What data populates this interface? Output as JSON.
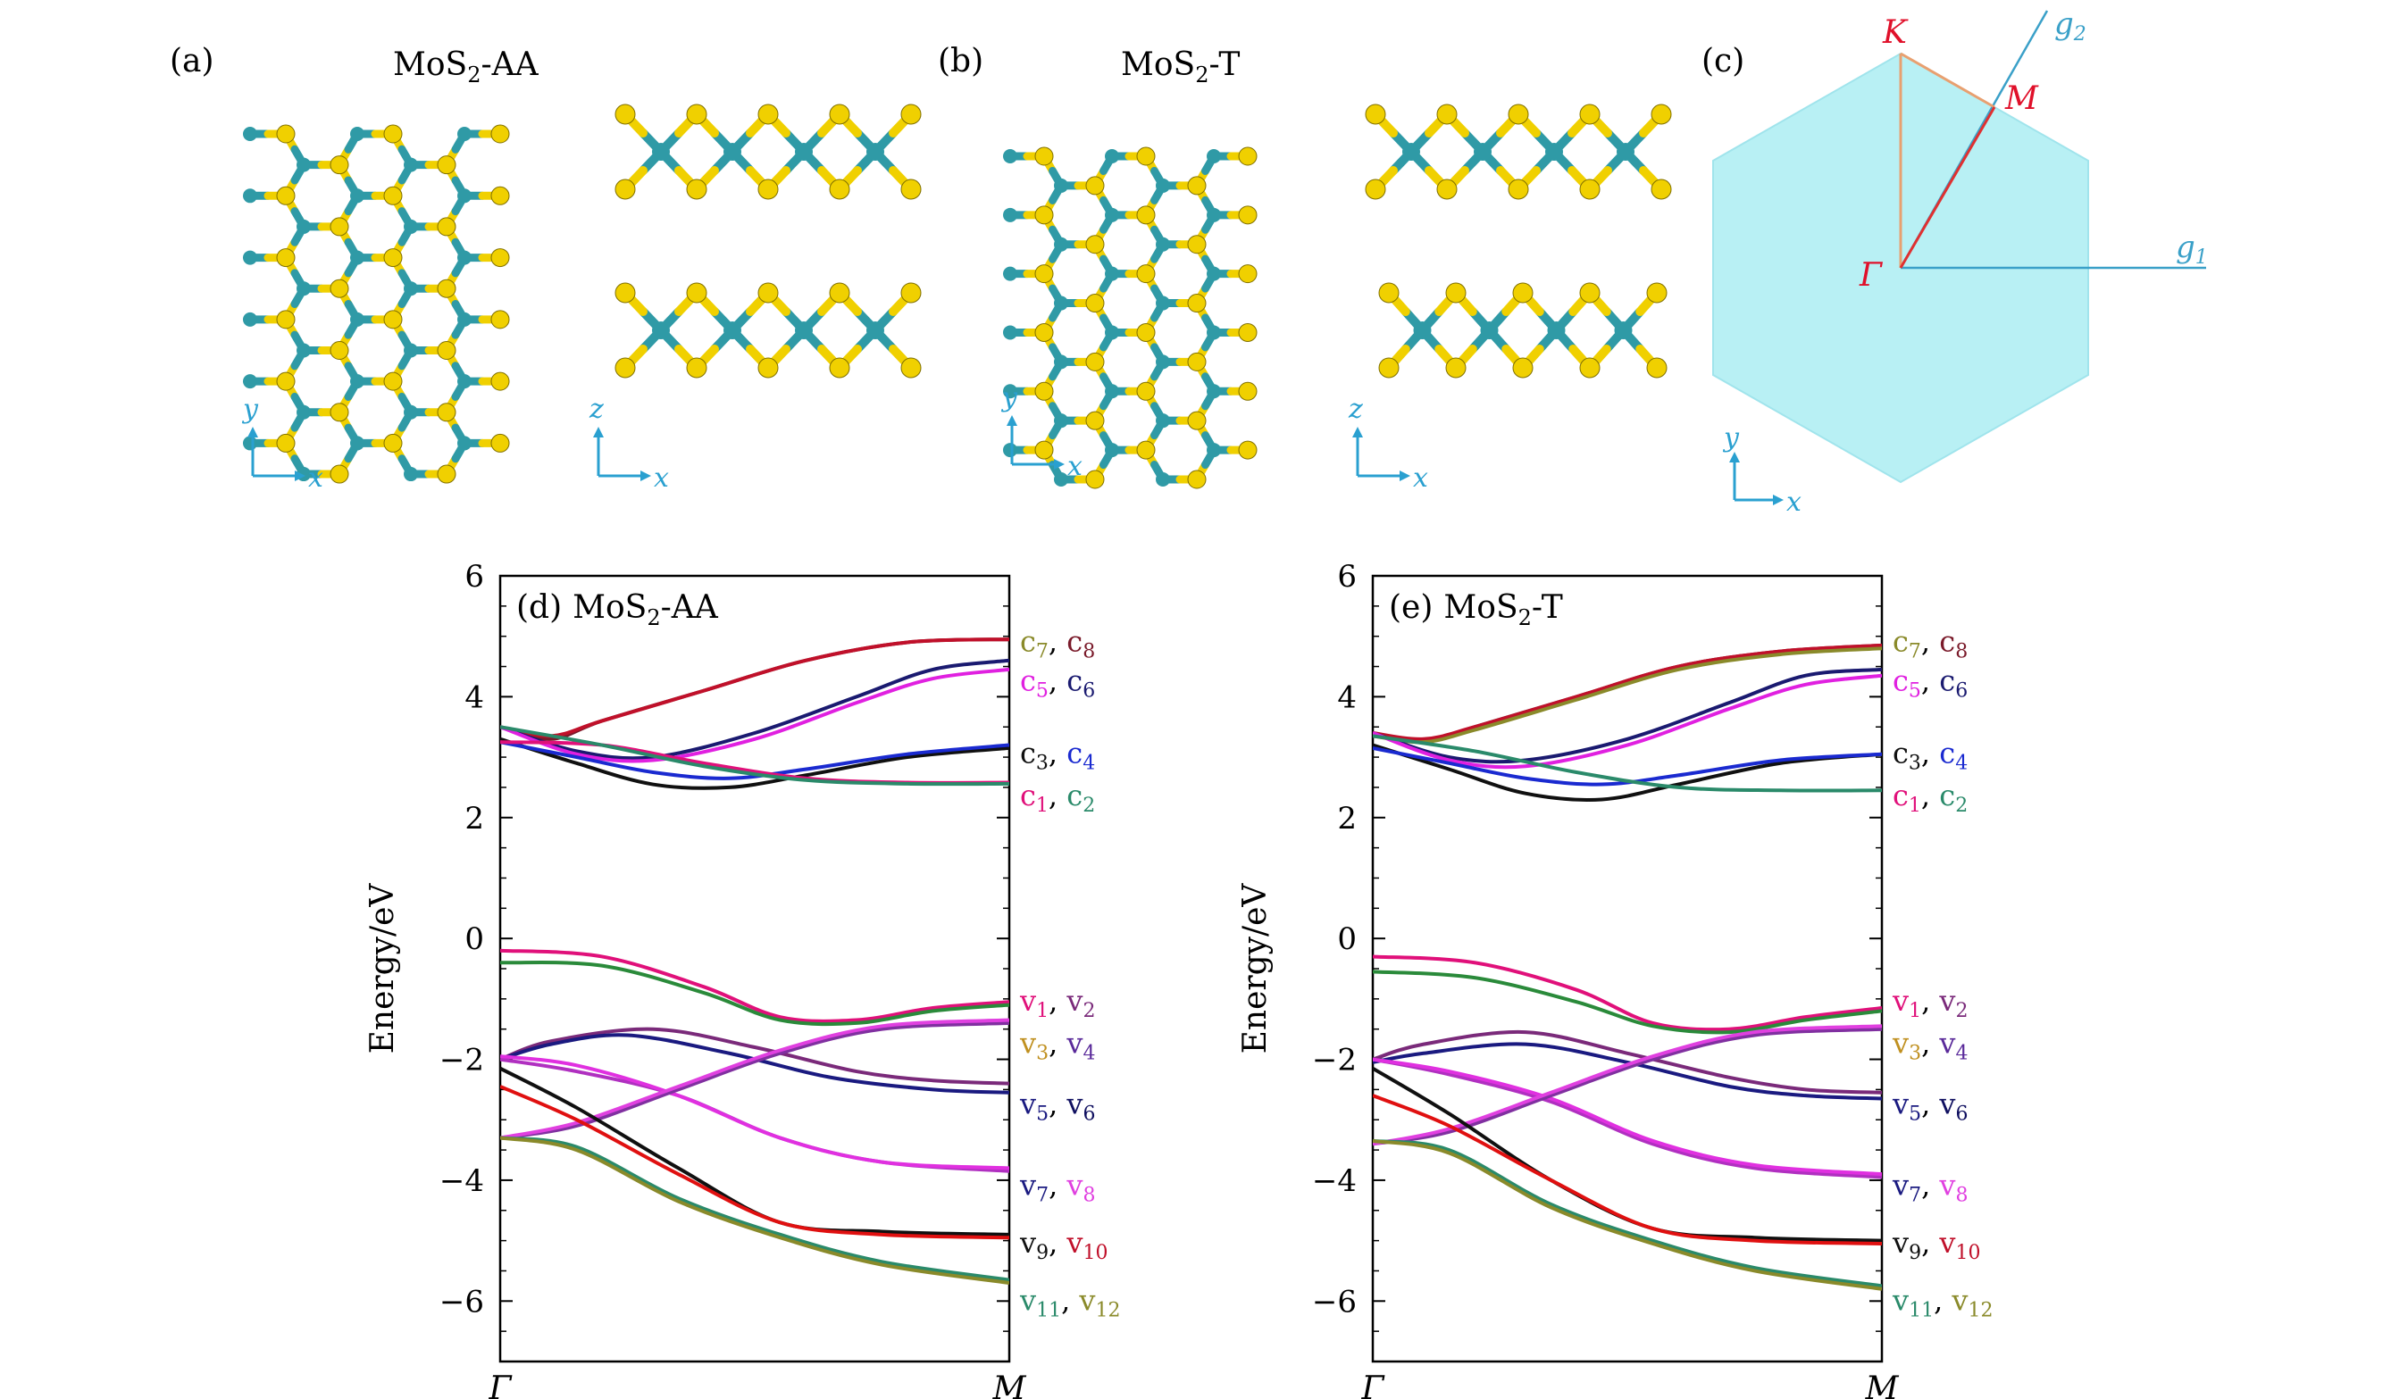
{
  "panels": {
    "a": {
      "letter": "(a)",
      "title_main": "MoS",
      "title_sub": "2",
      "title_rest": "-AA"
    },
    "b": {
      "letter": "(b)",
      "title_main": "MoS",
      "title_sub": "2",
      "title_rest": "-T"
    },
    "c": {
      "letter": "(c)"
    },
    "d": {
      "letter": "(d)",
      "title_main": "MoS",
      "title_sub": "2",
      "title_rest": "-AA"
    },
    "e": {
      "letter": "(e)",
      "title_main": "MoS",
      "title_sub": "2",
      "title_rest": "-T"
    }
  },
  "axes_labels": {
    "x": "x",
    "y": "y",
    "z": "z"
  },
  "brillouin": {
    "K": "K",
    "M": "M",
    "Gamma": "Γ",
    "g1_main": "g",
    "g1_sub": "1",
    "g2_main": "g",
    "g2_sub": "2"
  },
  "colors": {
    "atom_s": "#f0d000",
    "atom_mo": "#2f9aa6",
    "axis_blue": "#2aa0d0",
    "bz_fill": "#b8f0f4",
    "point_red": "#e0102a",
    "kpath_orange": "#e8a070"
  },
  "chart_data": [
    {
      "type": "line",
      "panel": "d",
      "ylabel": "Energy/eV",
      "ylim": [
        -7,
        6
      ],
      "yticks": [
        -6,
        -4,
        -2,
        0,
        2,
        4,
        6
      ],
      "xticks": [
        "Γ",
        "M"
      ],
      "xlim": [
        0,
        1
      ],
      "series": [
        {
          "color": "#7a1a2a",
          "x": [
            0,
            0.1,
            0.2,
            0.4,
            0.6,
            0.8,
            1
          ],
          "y": [
            3.5,
            3.3,
            3.6,
            4.1,
            4.6,
            4.9,
            4.95
          ]
        },
        {
          "color": "#c0102a",
          "x": [
            0,
            0.1,
            0.2,
            0.4,
            0.6,
            0.8,
            1
          ],
          "y": [
            3.5,
            3.35,
            3.6,
            4.1,
            4.6,
            4.9,
            4.95
          ]
        },
        {
          "color": "#1a1a70",
          "x": [
            0,
            0.15,
            0.3,
            0.5,
            0.7,
            0.85,
            1
          ],
          "y": [
            3.5,
            3.1,
            3.0,
            3.4,
            4.0,
            4.45,
            4.6
          ]
        },
        {
          "color": "#e020e0",
          "x": [
            0,
            0.15,
            0.3,
            0.5,
            0.7,
            0.85,
            1
          ],
          "y": [
            3.5,
            3.05,
            2.95,
            3.3,
            3.9,
            4.3,
            4.45
          ]
        },
        {
          "color": "#101010",
          "x": [
            0,
            0.15,
            0.3,
            0.45,
            0.6,
            0.8,
            1
          ],
          "y": [
            3.3,
            2.9,
            2.55,
            2.5,
            2.7,
            3.0,
            3.15
          ]
        },
        {
          "color": "#1a2ad0",
          "x": [
            0,
            0.15,
            0.3,
            0.45,
            0.6,
            0.8,
            1
          ],
          "y": [
            3.25,
            3.0,
            2.75,
            2.65,
            2.8,
            3.05,
            3.2
          ]
        },
        {
          "color": "#e0107a",
          "x": [
            0,
            0.2,
            0.4,
            0.6,
            0.8,
            1
          ],
          "y": [
            3.25,
            3.2,
            2.9,
            2.65,
            2.58,
            2.58
          ]
        },
        {
          "color": "#2a8a6a",
          "x": [
            0,
            0.2,
            0.4,
            0.6,
            0.8,
            1
          ],
          "y": [
            3.5,
            3.2,
            2.85,
            2.62,
            2.56,
            2.56
          ]
        },
        {
          "color": "#e0107a",
          "x": [
            0,
            0.2,
            0.4,
            0.55,
            0.7,
            0.85,
            1
          ],
          "y": [
            -0.2,
            -0.3,
            -0.8,
            -1.3,
            -1.35,
            -1.15,
            -1.05
          ]
        },
        {
          "color": "#2a8a3a",
          "x": [
            0,
            0.2,
            0.4,
            0.55,
            0.7,
            0.85,
            1
          ],
          "y": [
            -0.4,
            -0.45,
            -0.9,
            -1.35,
            -1.4,
            -1.2,
            -1.1
          ]
        },
        {
          "color": "#7a2a7a",
          "x": [
            0,
            0.1,
            0.3,
            0.5,
            0.7,
            0.85,
            1
          ],
          "y": [
            -2.0,
            -1.7,
            -1.5,
            -1.8,
            -2.2,
            -2.35,
            -2.4
          ]
        },
        {
          "color": "#1a1a80",
          "x": [
            0,
            0.1,
            0.25,
            0.45,
            0.65,
            0.85,
            1
          ],
          "y": [
            -2.0,
            -1.75,
            -1.6,
            -1.9,
            -2.3,
            -2.5,
            -2.55
          ]
        },
        {
          "color": "#b030c0",
          "x": [
            0,
            0.15,
            0.35,
            0.55,
            0.75,
            1
          ],
          "y": [
            -2.0,
            -2.2,
            -2.6,
            -3.3,
            -3.7,
            -3.85
          ]
        },
        {
          "color": "#e030e0",
          "x": [
            0,
            0.15,
            0.35,
            0.55,
            0.75,
            1
          ],
          "y": [
            -1.95,
            -2.1,
            -2.6,
            -3.3,
            -3.7,
            -3.8
          ]
        },
        {
          "color": "#8030a0",
          "x": [
            0,
            0.15,
            0.35,
            0.55,
            0.75,
            1
          ],
          "y": [
            -3.3,
            -3.1,
            -2.5,
            -1.9,
            -1.5,
            -1.4
          ]
        },
        {
          "color": "#e040e0",
          "x": [
            0,
            0.15,
            0.35,
            0.55,
            0.75,
            1
          ],
          "y": [
            -3.3,
            -3.05,
            -2.45,
            -1.85,
            -1.45,
            -1.35
          ]
        },
        {
          "color": "#101010",
          "x": [
            0,
            0.15,
            0.35,
            0.55,
            0.75,
            1
          ],
          "y": [
            -2.15,
            -2.8,
            -3.8,
            -4.7,
            -4.85,
            -4.9
          ]
        },
        {
          "color": "#e01010",
          "x": [
            0,
            0.15,
            0.35,
            0.55,
            0.75,
            1
          ],
          "y": [
            -2.45,
            -3.0,
            -3.9,
            -4.7,
            -4.9,
            -4.95
          ]
        },
        {
          "color": "#2a8a6a",
          "x": [
            0,
            0.15,
            0.35,
            0.55,
            0.75,
            1
          ],
          "y": [
            -3.3,
            -3.45,
            -4.3,
            -4.9,
            -5.35,
            -5.65
          ]
        },
        {
          "color": "#8a8a2a",
          "x": [
            0,
            0.15,
            0.35,
            0.55,
            0.75,
            1
          ],
          "y": [
            -3.3,
            -3.5,
            -4.35,
            -4.95,
            -5.4,
            -5.7
          ]
        }
      ],
      "band_labels": [
        {
          "y": 4.9,
          "a": "c",
          "a_sub": "7",
          "a_color": "#8a8a2a",
          "b": "c",
          "b_sub": "8",
          "b_color": "#7a1a2a"
        },
        {
          "y": 4.25,
          "a": "c",
          "a_sub": "5",
          "a_color": "#e020e0",
          "b": "c",
          "b_sub": "6",
          "b_color": "#1a1a70"
        },
        {
          "y": 3.05,
          "a": "c",
          "a_sub": "3",
          "a_color": "#101010",
          "b": "c",
          "b_sub": "4",
          "b_color": "#1a2ad0"
        },
        {
          "y": 2.35,
          "a": "c",
          "a_sub": "1",
          "a_color": "#e0107a",
          "b": "c",
          "b_sub": "2",
          "b_color": "#2a8a6a"
        },
        {
          "y": -1.05,
          "a": "v",
          "a_sub": "1",
          "a_color": "#e0107a",
          "b": "v",
          "b_sub": "2",
          "b_color": "#7a2a7a"
        },
        {
          "y": -1.75,
          "a": "v",
          "a_sub": "3",
          "a_color": "#c09020",
          "b": "v",
          "b_sub": "4",
          "b_color": "#5a2a9a"
        },
        {
          "y": -2.75,
          "a": "v",
          "a_sub": "5",
          "a_color": "#1a1a80",
          "b": "v",
          "b_sub": "6",
          "b_color": "#101060"
        },
        {
          "y": -4.1,
          "a": "v",
          "a_sub": "7",
          "a_color": "#1a1a80",
          "b": "v",
          "b_sub": "8",
          "b_color": "#e040e0"
        },
        {
          "y": -5.05,
          "a": "v",
          "a_sub": "9",
          "a_color": "#101010",
          "b": "v",
          "b_sub": "10",
          "b_color": "#c0102a"
        },
        {
          "y": -6.0,
          "a": "v",
          "a_sub": "11",
          "a_color": "#2a8a6a",
          "b": "v",
          "b_sub": "12",
          "b_color": "#8a8a2a"
        }
      ]
    },
    {
      "type": "line",
      "panel": "e",
      "ylabel": "Energy/eV",
      "ylim": [
        -7,
        6
      ],
      "yticks": [
        -6,
        -4,
        -2,
        0,
        2,
        4,
        6
      ],
      "xticks": [
        "Γ",
        "M"
      ],
      "xlim": [
        0,
        1
      ],
      "series": [
        {
          "color": "#7a1a2a",
          "x": [
            0,
            0.1,
            0.2,
            0.4,
            0.6,
            0.8,
            1
          ],
          "y": [
            3.4,
            3.25,
            3.5,
            4.0,
            4.5,
            4.75,
            4.85
          ]
        },
        {
          "color": "#c0102a",
          "x": [
            0,
            0.1,
            0.2,
            0.4,
            0.6,
            0.8,
            1
          ],
          "y": [
            3.4,
            3.3,
            3.5,
            4.0,
            4.5,
            4.75,
            4.85
          ]
        },
        {
          "color": "#8a8a2a",
          "x": [
            0,
            0.1,
            0.2,
            0.4,
            0.6,
            0.8,
            1
          ],
          "y": [
            3.35,
            3.25,
            3.45,
            3.95,
            4.45,
            4.7,
            4.8
          ]
        },
        {
          "color": "#1a1a70",
          "x": [
            0,
            0.15,
            0.3,
            0.5,
            0.7,
            0.85,
            1
          ],
          "y": [
            3.4,
            3.0,
            2.95,
            3.3,
            3.9,
            4.35,
            4.45
          ]
        },
        {
          "color": "#e020e0",
          "x": [
            0,
            0.15,
            0.3,
            0.5,
            0.7,
            0.85,
            1
          ],
          "y": [
            3.4,
            2.95,
            2.85,
            3.2,
            3.8,
            4.2,
            4.35
          ]
        },
        {
          "color": "#101010",
          "x": [
            0,
            0.15,
            0.3,
            0.45,
            0.6,
            0.8,
            1
          ],
          "y": [
            3.2,
            2.8,
            2.4,
            2.3,
            2.55,
            2.9,
            3.05
          ]
        },
        {
          "color": "#1a2ad0",
          "x": [
            0,
            0.15,
            0.3,
            0.45,
            0.6,
            0.8,
            1
          ],
          "y": [
            3.15,
            2.9,
            2.65,
            2.55,
            2.7,
            2.95,
            3.05
          ]
        },
        {
          "color": "#2a8a6a",
          "x": [
            0,
            0.2,
            0.4,
            0.6,
            0.8,
            1
          ],
          "y": [
            3.35,
            3.1,
            2.75,
            2.5,
            2.45,
            2.45
          ]
        },
        {
          "color": "#e0107a",
          "x": [
            0,
            0.2,
            0.4,
            0.55,
            0.7,
            0.85,
            1
          ],
          "y": [
            -0.3,
            -0.4,
            -0.85,
            -1.4,
            -1.5,
            -1.3,
            -1.15
          ]
        },
        {
          "color": "#2a8a3a",
          "x": [
            0,
            0.2,
            0.4,
            0.55,
            0.7,
            0.85,
            1
          ],
          "y": [
            -0.55,
            -0.65,
            -1.05,
            -1.45,
            -1.55,
            -1.35,
            -1.2
          ]
        },
        {
          "color": "#7a2a7a",
          "x": [
            0,
            0.1,
            0.3,
            0.5,
            0.7,
            0.85,
            1
          ],
          "y": [
            -2.0,
            -1.75,
            -1.55,
            -1.9,
            -2.3,
            -2.5,
            -2.55
          ]
        },
        {
          "color": "#1a1a80",
          "x": [
            0,
            0.1,
            0.3,
            0.5,
            0.7,
            0.85,
            1
          ],
          "y": [
            -2.05,
            -1.9,
            -1.75,
            -2.05,
            -2.45,
            -2.6,
            -2.65
          ]
        },
        {
          "color": "#b030c0",
          "x": [
            0,
            0.15,
            0.35,
            0.55,
            0.75,
            1
          ],
          "y": [
            -2.0,
            -2.25,
            -2.7,
            -3.4,
            -3.8,
            -3.95
          ]
        },
        {
          "color": "#e030e0",
          "x": [
            0,
            0.15,
            0.35,
            0.55,
            0.75,
            1
          ],
          "y": [
            -2.0,
            -2.2,
            -2.65,
            -3.35,
            -3.75,
            -3.9
          ]
        },
        {
          "color": "#8030a0",
          "x": [
            0,
            0.15,
            0.35,
            0.55,
            0.75,
            1
          ],
          "y": [
            -3.4,
            -3.2,
            -2.6,
            -2.0,
            -1.6,
            -1.5
          ]
        },
        {
          "color": "#e040e0",
          "x": [
            0,
            0.15,
            0.35,
            0.55,
            0.75,
            1
          ],
          "y": [
            -3.4,
            -3.15,
            -2.55,
            -1.95,
            -1.55,
            -1.45
          ]
        },
        {
          "color": "#101010",
          "x": [
            0,
            0.15,
            0.35,
            0.55,
            0.75,
            1
          ],
          "y": [
            -2.15,
            -2.9,
            -4.0,
            -4.8,
            -4.95,
            -5.0
          ]
        },
        {
          "color": "#e01010",
          "x": [
            0,
            0.15,
            0.35,
            0.55,
            0.75,
            1
          ],
          "y": [
            -2.6,
            -3.1,
            -4.0,
            -4.8,
            -5.0,
            -5.05
          ]
        },
        {
          "color": "#2a8a6a",
          "x": [
            0,
            0.15,
            0.35,
            0.55,
            0.75,
            1
          ],
          "y": [
            -3.35,
            -3.5,
            -4.4,
            -5.0,
            -5.45,
            -5.75
          ]
        },
        {
          "color": "#8a8a2a",
          "x": [
            0,
            0.15,
            0.35,
            0.55,
            0.75,
            1
          ],
          "y": [
            -3.35,
            -3.55,
            -4.45,
            -5.05,
            -5.5,
            -5.8
          ]
        }
      ],
      "band_labels": [
        {
          "y": 4.9,
          "a": "c",
          "a_sub": "7",
          "a_color": "#8a8a2a",
          "b": "c",
          "b_sub": "8",
          "b_color": "#7a1a2a"
        },
        {
          "y": 4.25,
          "a": "c",
          "a_sub": "5",
          "a_color": "#e020e0",
          "b": "c",
          "b_sub": "6",
          "b_color": "#1a1a70"
        },
        {
          "y": 3.05,
          "a": "c",
          "a_sub": "3",
          "a_color": "#101010",
          "b": "c",
          "b_sub": "4",
          "b_color": "#1a2ad0"
        },
        {
          "y": 2.35,
          "a": "c",
          "a_sub": "1",
          "a_color": "#e0107a",
          "b": "c",
          "b_sub": "2",
          "b_color": "#2a8a6a"
        },
        {
          "y": -1.05,
          "a": "v",
          "a_sub": "1",
          "a_color": "#e0107a",
          "b": "v",
          "b_sub": "2",
          "b_color": "#7a2a7a"
        },
        {
          "y": -1.75,
          "a": "v",
          "a_sub": "3",
          "a_color": "#c09020",
          "b": "v",
          "b_sub": "4",
          "b_color": "#5a2a9a"
        },
        {
          "y": -2.75,
          "a": "v",
          "a_sub": "5",
          "a_color": "#1a1a80",
          "b": "v",
          "b_sub": "6",
          "b_color": "#101060"
        },
        {
          "y": -4.1,
          "a": "v",
          "a_sub": "7",
          "a_color": "#1a1a80",
          "b": "v",
          "b_sub": "8",
          "b_color": "#e040e0"
        },
        {
          "y": -5.05,
          "a": "v",
          "a_sub": "9",
          "a_color": "#101010",
          "b": "v",
          "b_sub": "10",
          "b_color": "#c0102a"
        },
        {
          "y": -6.0,
          "a": "v",
          "a_sub": "11",
          "a_color": "#2a8a6a",
          "b": "v",
          "b_sub": "12",
          "b_color": "#8a8a2a"
        }
      ]
    }
  ]
}
